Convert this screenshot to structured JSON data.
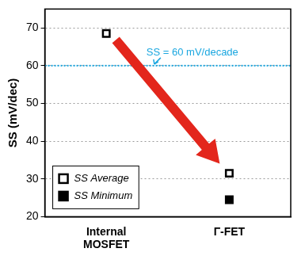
{
  "chart_data": {
    "type": "scatter",
    "categories": [
      "Internal MOSFET",
      "Γ-FET"
    ],
    "series": [
      {
        "name": "SS Average",
        "color": "#000000",
        "marker": "open square",
        "values": [
          68.5,
          31.5
        ]
      },
      {
        "name": "SS Minimum",
        "color": "#000000",
        "marker": "filled square",
        "values": [
          null,
          24.5
        ]
      }
    ],
    "y_label": "SS (mV/dec)",
    "ylim": [
      20,
      75
    ],
    "yticks": [
      20,
      30,
      40,
      50,
      60,
      70
    ],
    "grid": true,
    "legend": "lower left",
    "annotations": [
      {
        "text": "SS = 60 mV/decade",
        "y": 60,
        "color": "#1ba7e0"
      }
    ]
  }
}
